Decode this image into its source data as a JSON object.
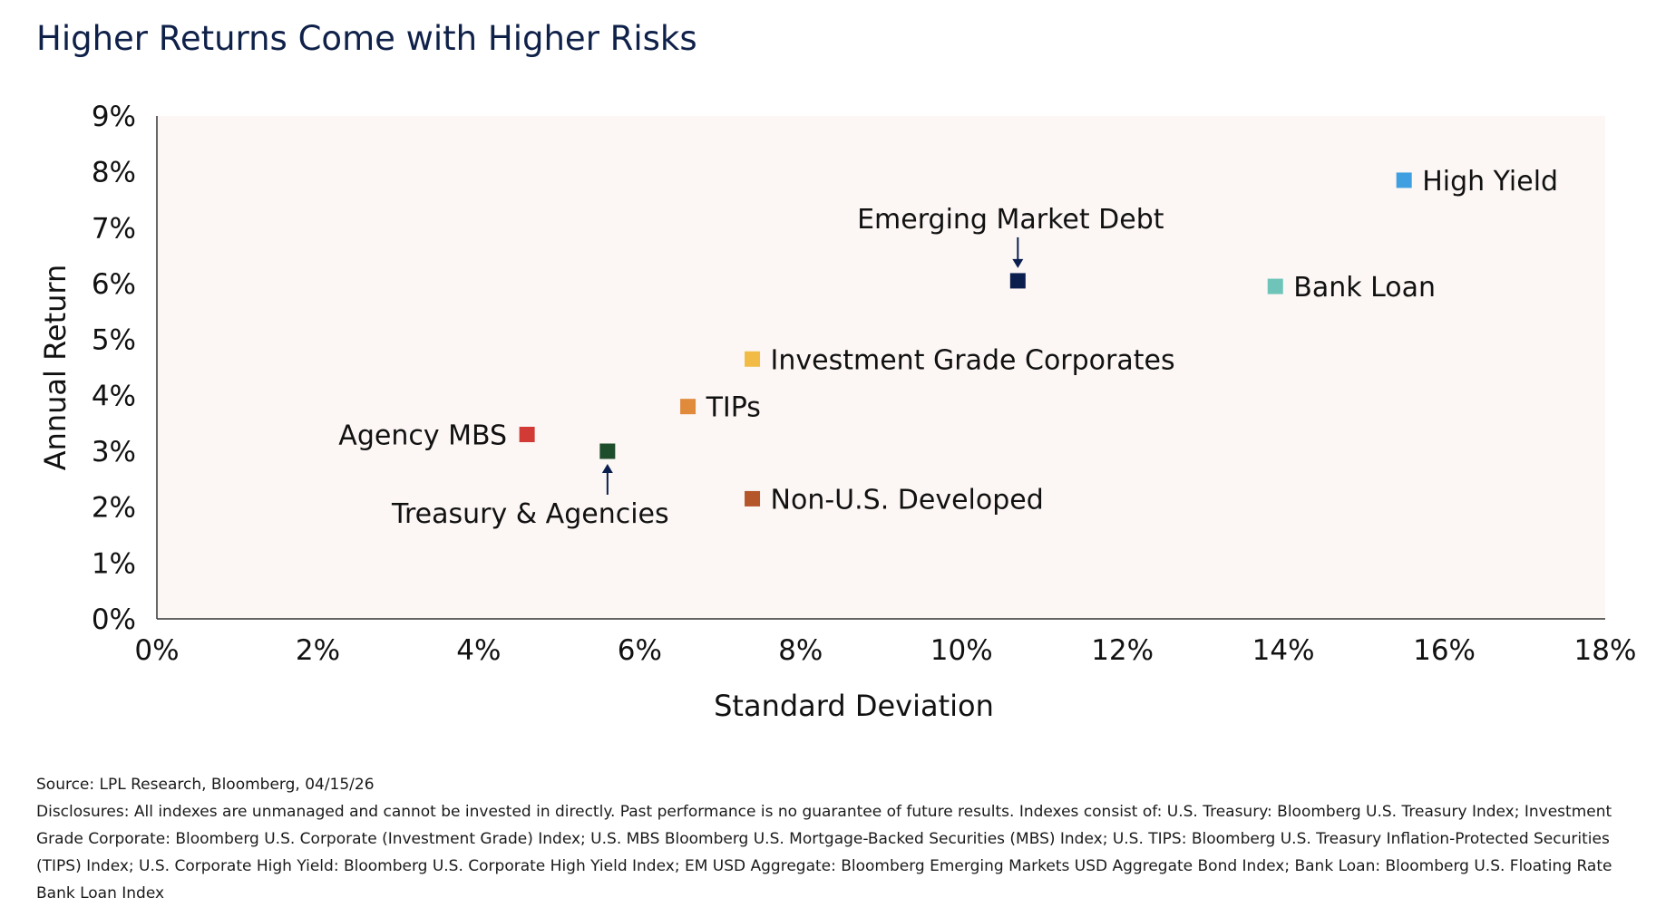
{
  "title": "Higher Returns Come with Higher Risks",
  "chart_data": {
    "type": "scatter",
    "xlabel": "Standard Deviation",
    "ylabel": "Annual Return",
    "xlim": [
      0,
      18
    ],
    "ylim": [
      0,
      9
    ],
    "x_ticks": [
      "0%",
      "2%",
      "4%",
      "6%",
      "8%",
      "10%",
      "12%",
      "14%",
      "16%",
      "18%"
    ],
    "y_ticks": [
      "0%",
      "1%",
      "2%",
      "3%",
      "4%",
      "5%",
      "6%",
      "7%",
      "8%",
      "9%"
    ],
    "grid": false,
    "points": [
      {
        "label": "High Yield",
        "x": 15.5,
        "y": 7.85,
        "color": "#3f9fe0",
        "label_pos": "right"
      },
      {
        "label": "Emerging Market Debt",
        "x": 10.7,
        "y": 6.05,
        "color": "#0b1f4f",
        "label_pos": "above-arrow"
      },
      {
        "label": "Bank Loan",
        "x": 13.9,
        "y": 5.95,
        "color": "#6ec4b8",
        "label_pos": "right"
      },
      {
        "label": "Investment Grade Corporates",
        "x": 7.4,
        "y": 4.65,
        "color": "#f2bb45",
        "label_pos": "right"
      },
      {
        "label": "TIPs",
        "x": 6.6,
        "y": 3.8,
        "color": "#e08a3c",
        "label_pos": "right"
      },
      {
        "label": "Agency MBS",
        "x": 4.6,
        "y": 3.3,
        "color": "#d23a35",
        "label_pos": "left"
      },
      {
        "label": "Treasury & Agencies",
        "x": 5.6,
        "y": 3.0,
        "color": "#1e4d2b",
        "label_pos": "below-arrow"
      },
      {
        "label": "Non-U.S. Developed",
        "x": 7.4,
        "y": 2.15,
        "color": "#b5552a",
        "label_pos": "right"
      }
    ]
  },
  "footer": {
    "source": "Source: LPL Research, Bloomberg, 04/15/26",
    "disclosures": "Disclosures: All indexes are unmanaged and cannot be invested in directly. Past performance is no guarantee of future results. Indexes consist of: U.S. Treasury: Bloomberg U.S. Treasury Index; Investment Grade Corporate: Bloomberg U.S. Corporate (Investment Grade) Index; U.S. MBS Bloomberg U.S. Mortgage-Backed Securities (MBS) Index; U.S. TIPS: Bloomberg U.S. Treasury Inflation-Protected Securities (TIPS) Index; U.S. Corporate High Yield: Bloomberg U.S. Corporate High Yield Index; EM USD Aggregate: Bloomberg Emerging Markets USD Aggregate Bond Index; Bank Loan: Bloomberg U.S. Floating Rate Bank Loan Index"
  }
}
